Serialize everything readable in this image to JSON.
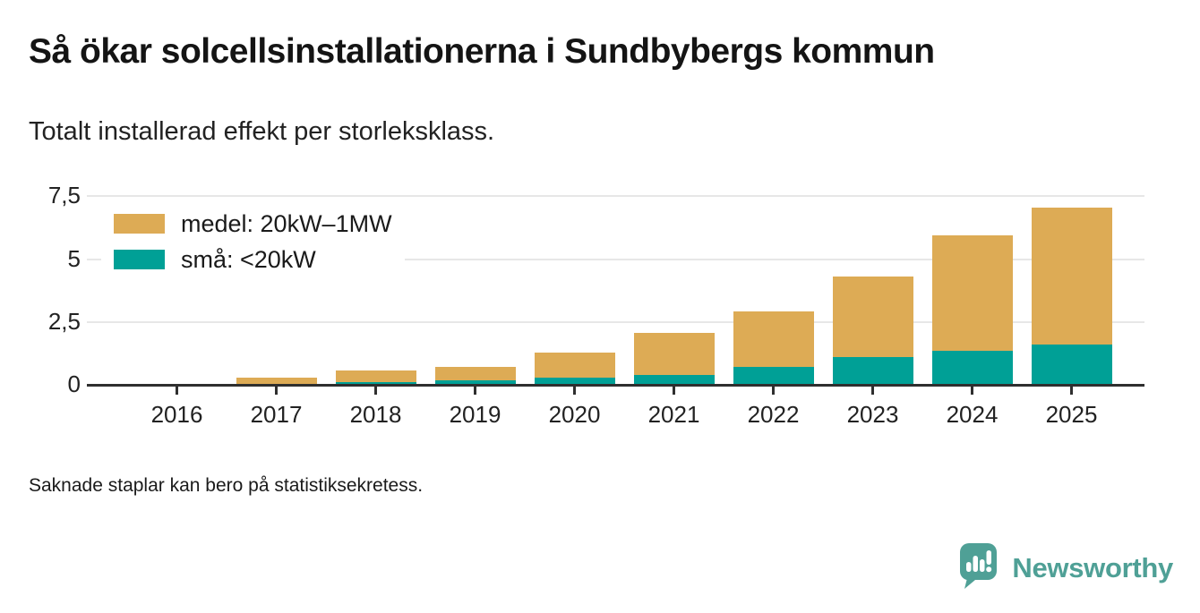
{
  "header": {
    "title": "Så ökar solcellsinstallationerna i Sundbybergs kommun",
    "subtitle": "Totalt installerad effekt per storleksklass."
  },
  "chart_data": {
    "type": "bar",
    "stacked": true,
    "categories": [
      "2016",
      "2017",
      "2018",
      "2019",
      "2020",
      "2021",
      "2022",
      "2023",
      "2024",
      "2025"
    ],
    "series": [
      {
        "name": "medel: 20kW–1MW",
        "color": "#DDAB55",
        "values": [
          0,
          0.28,
          0.47,
          0.55,
          1.0,
          1.65,
          2.2,
          3.2,
          4.6,
          5.45
        ]
      },
      {
        "name": "små: <20kW",
        "color": "#00A096",
        "values": [
          0,
          0,
          0.1,
          0.17,
          0.28,
          0.4,
          0.72,
          1.1,
          1.35,
          1.6
        ]
      }
    ],
    "totals": [
      0,
      0.28,
      0.57,
      0.72,
      1.28,
      2.05,
      2.92,
      4.3,
      5.95,
      7.05
    ],
    "ylim": [
      0,
      7.5
    ],
    "yticks": [
      0,
      2.5,
      5,
      7.5
    ],
    "ytick_labels": [
      "0",
      "2,5",
      "5",
      "7,5"
    ],
    "grid": true,
    "legend_position": "top-left",
    "missing_bar_note": "2016 has no bar (data suppressed)"
  },
  "footnote": "Saknade staplar kan bero på statistiksekretess.",
  "branding": {
    "logo_text": "Newsworthy",
    "logo_color": "#4FA096",
    "logo_icon": "speech-bubble-bar-chart-icon"
  },
  "colors": {
    "medel": "#DDAB55",
    "sma": "#00A096",
    "axis": "#2F2F2F",
    "gridline": "#E7E7E7",
    "text": "#1A1A1A"
  }
}
